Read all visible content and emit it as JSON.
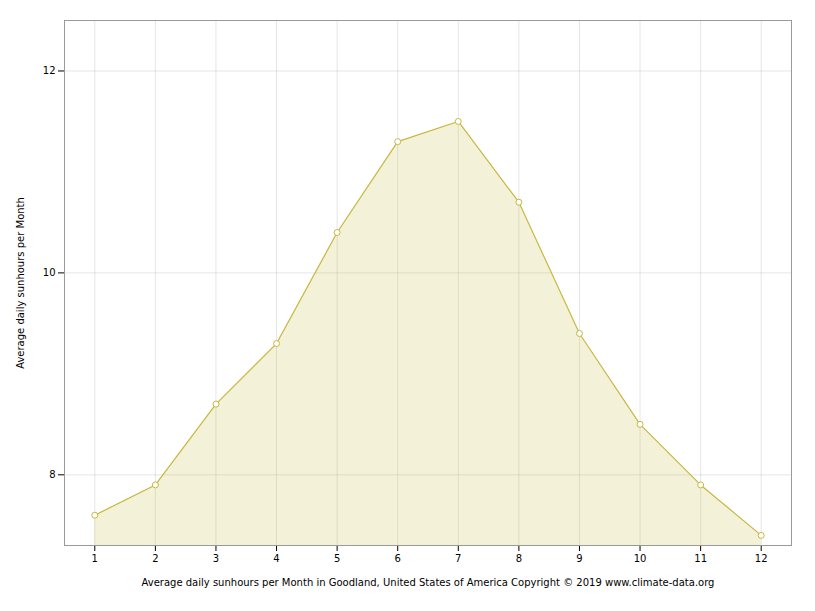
{
  "chart_data": {
    "type": "area",
    "x": [
      1,
      2,
      3,
      4,
      5,
      6,
      7,
      8,
      9,
      10,
      11,
      12
    ],
    "values": [
      7.6,
      7.9,
      8.7,
      9.3,
      10.4,
      11.3,
      11.5,
      10.7,
      9.4,
      8.5,
      7.9,
      7.4
    ],
    "color": "#C8B840",
    "marker": "circle",
    "xlabel": "Average daily sunhours per Month in Goodland, United States of America Copyright © 2019 www.climate-data.org",
    "ylabel": "Average daily sunhours per Month",
    "xlim": [
      0.5,
      12.5
    ],
    "ylim": [
      7.3,
      12.5
    ],
    "xticks": [
      1,
      2,
      3,
      4,
      5,
      6,
      7,
      8,
      9,
      10,
      11,
      12
    ],
    "yticks": [
      8,
      10,
      12
    ],
    "grid": true
  }
}
